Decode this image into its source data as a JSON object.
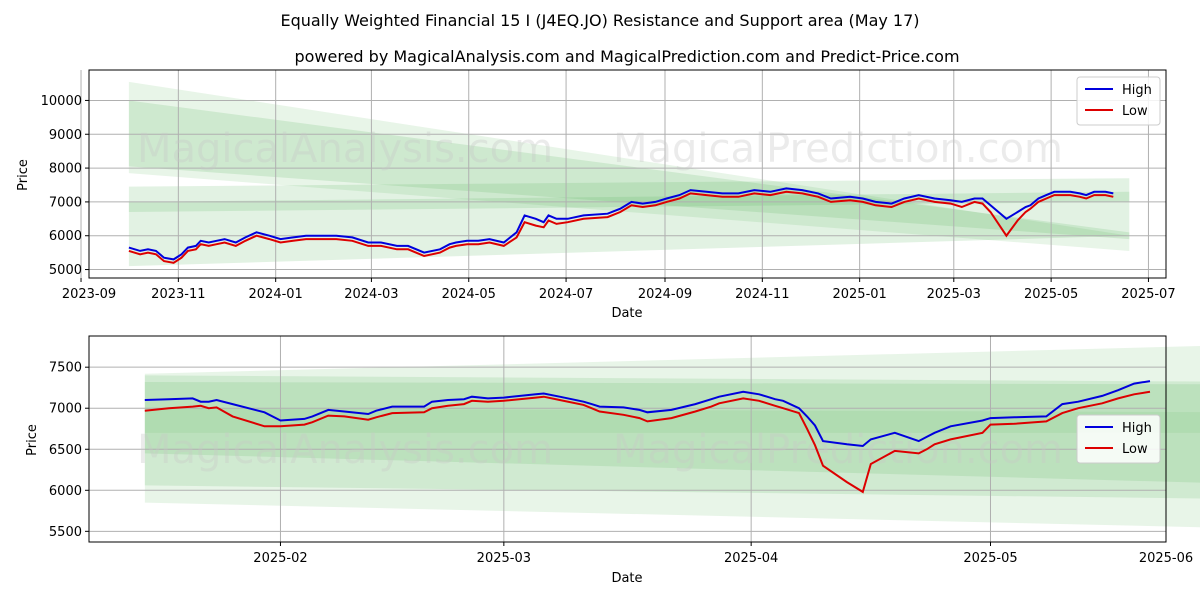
{
  "chart_data": {
    "title": "Equally Weighted Financial 15 I (J4EQ.JO) Resistance and Support area (May 17)",
    "subtitle": "powered by MagicalAnalysis.com and MagicalPrediction.com and Predict-Price.com",
    "watermarks": [
      "MagicalAnalysis.com",
      "MagicalPrediction.com"
    ],
    "colors": {
      "high": "#0000dd",
      "low": "#dd0000",
      "band": "#4caf50",
      "grid": "#b0b0b0"
    },
    "legend": {
      "placement": "top-right",
      "high_label": "High",
      "low_label": "Low"
    },
    "top": {
      "type": "line",
      "xlabel": "Date",
      "ylabel": "Price",
      "xlim": [
        -25,
        650
      ],
      "ylim": [
        4750,
        10900
      ],
      "xticks": [
        {
          "label": "2023-09",
          "x": -30
        },
        {
          "label": "2023-11",
          "x": 31
        },
        {
          "label": "2024-01",
          "x": 92
        },
        {
          "label": "2024-03",
          "x": 152
        },
        {
          "label": "2024-05",
          "x": 213
        },
        {
          "label": "2024-07",
          "x": 274
        },
        {
          "label": "2024-09",
          "x": 336
        },
        {
          "label": "2024-11",
          "x": 397
        },
        {
          "label": "2025-01",
          "x": 458
        },
        {
          "label": "2025-03",
          "x": 517
        },
        {
          "label": "2025-05",
          "x": 578
        },
        {
          "label": "2025-07",
          "x": 639
        }
      ],
      "yticks": [
        5000,
        6000,
        7000,
        8000,
        9000,
        10000
      ],
      "bands": [
        {
          "x": [
            0,
            627
          ],
          "top": [
            10550,
            6000
          ],
          "bottom": [
            7850,
            5550
          ],
          "opacity": 0.13
        },
        {
          "x": [
            0,
            627
          ],
          "top": [
            10000,
            6100
          ],
          "bottom": [
            8050,
            5900
          ],
          "opacity": 0.16
        },
        {
          "x": [
            0,
            627
          ],
          "top": [
            7450,
            7700
          ],
          "bottom": [
            6700,
            7000
          ],
          "opacity": 0.16
        },
        {
          "x": [
            0,
            627
          ],
          "top": [
            7000,
            7300
          ],
          "bottom": [
            5100,
            6000
          ],
          "opacity": 0.16
        }
      ],
      "series": [
        {
          "name": "High",
          "x": [
            0,
            7,
            12,
            17,
            22,
            28,
            33,
            37,
            42,
            45,
            50,
            55,
            60,
            67,
            73,
            80,
            88,
            95,
            103,
            111,
            120,
            130,
            140,
            150,
            158,
            168,
            175,
            185,
            195,
            201,
            205,
            212,
            219,
            226,
            235,
            243,
            248,
            255,
            260,
            263,
            268,
            275,
            285,
            300,
            308,
            315,
            322,
            330,
            337,
            345,
            352,
            362,
            372,
            382,
            392,
            402,
            412,
            422,
            432,
            440,
            452,
            460,
            468,
            478,
            486,
            495,
            505,
            515,
            522,
            530,
            535,
            540,
            550,
            557,
            562,
            565,
            570,
            575,
            580,
            590,
            596,
            600,
            605,
            612,
            617
          ],
          "values": [
            5650,
            5550,
            5600,
            5550,
            5350,
            5300,
            5450,
            5650,
            5700,
            5850,
            5800,
            5850,
            5900,
            5800,
            5950,
            6100,
            6000,
            5900,
            5950,
            6000,
            6000,
            6000,
            5950,
            5800,
            5800,
            5700,
            5700,
            5500,
            5600,
            5750,
            5800,
            5850,
            5850,
            5900,
            5800,
            6100,
            6600,
            6500,
            6400,
            6600,
            6500,
            6500,
            6600,
            6650,
            6800,
            7000,
            6950,
            7000,
            7100,
            7200,
            7350,
            7300,
            7250,
            7250,
            7350,
            7300,
            7400,
            7350,
            7250,
            7100,
            7150,
            7100,
            7000,
            6950,
            7100,
            7200,
            7100,
            7050,
            7000,
            7100,
            7100,
            6900,
            6500,
            6700,
            6850,
            6900,
            7100,
            7200,
            7300,
            7300,
            7250,
            7200,
            7300,
            7300,
            7250
          ]
        },
        {
          "name": "Low",
          "x": [
            0,
            7,
            12,
            17,
            22,
            28,
            33,
            37,
            42,
            45,
            50,
            55,
            60,
            67,
            73,
            80,
            88,
            95,
            103,
            111,
            120,
            130,
            140,
            150,
            158,
            168,
            175,
            185,
            195,
            201,
            205,
            212,
            219,
            226,
            235,
            243,
            248,
            255,
            260,
            263,
            268,
            275,
            285,
            300,
            308,
            315,
            322,
            330,
            337,
            345,
            352,
            362,
            372,
            382,
            392,
            402,
            412,
            422,
            432,
            440,
            452,
            460,
            468,
            478,
            486,
            495,
            505,
            515,
            522,
            530,
            535,
            540,
            550,
            557,
            562,
            565,
            570,
            575,
            580,
            590,
            596,
            600,
            605,
            612,
            617
          ],
          "values": [
            5550,
            5450,
            5500,
            5450,
            5250,
            5200,
            5350,
            5550,
            5600,
            5750,
            5700,
            5750,
            5800,
            5700,
            5850,
            6000,
            5900,
            5800,
            5850,
            5900,
            5900,
            5900,
            5850,
            5700,
            5700,
            5600,
            5600,
            5400,
            5500,
            5650,
            5700,
            5750,
            5750,
            5800,
            5700,
            5950,
            6400,
            6300,
            6250,
            6450,
            6350,
            6400,
            6500,
            6550,
            6700,
            6900,
            6850,
            6900,
            7000,
            7100,
            7250,
            7200,
            7150,
            7150,
            7250,
            7200,
            7300,
            7250,
            7150,
            7000,
            7050,
            7000,
            6900,
            6850,
            7000,
            7100,
            7000,
            6950,
            6850,
            7000,
            6950,
            6700,
            6000,
            6450,
            6700,
            6800,
            7000,
            7100,
            7200,
            7200,
            7150,
            7100,
            7200,
            7200,
            7150
          ]
        }
      ]
    },
    "bottom": {
      "type": "line",
      "xlabel": "Date",
      "ylabel": "Price",
      "xlim": [
        -7,
        128
      ],
      "ylim": [
        5370,
        7880
      ],
      "xticks": [
        {
          "label": "2025-02",
          "x": 17
        },
        {
          "label": "2025-03",
          "x": 45
        },
        {
          "label": "2025-04",
          "x": 76
        },
        {
          "label": "2025-05",
          "x": 106
        },
        {
          "label": "2025-06",
          "x": 137
        }
      ],
      "yticks": [
        5500,
        6000,
        6500,
        7000,
        7500
      ],
      "bands": [
        {
          "x": [
            0,
            141
          ],
          "top": [
            7420,
            7780
          ],
          "bottom": [
            5850,
            5530
          ],
          "opacity": 0.13
        },
        {
          "x": [
            0,
            141
          ],
          "top": [
            7320,
            7290
          ],
          "bottom": [
            6060,
            5890
          ],
          "opacity": 0.15
        },
        {
          "x": [
            0,
            141
          ],
          "top": [
            7400,
            7320
          ],
          "bottom": [
            6450,
            6070
          ],
          "opacity": 0.15
        },
        {
          "x": [
            0,
            141
          ],
          "top": [
            7000,
            6950
          ],
          "bottom": [
            6700,
            6700
          ],
          "opacity": 0.1
        }
      ],
      "series": [
        {
          "name": "High",
          "x": [
            0,
            3,
            6,
            7,
            8,
            9,
            11,
            15,
            17,
            20,
            21,
            23,
            25,
            28,
            29,
            31,
            35,
            36,
            38,
            40,
            41,
            43,
            45,
            49,
            50,
            52,
            55,
            56,
            57,
            60,
            62,
            63,
            66,
            69,
            71,
            72,
            75,
            77,
            78,
            79,
            80,
            82,
            83,
            84,
            85,
            88,
            90,
            91,
            94,
            97,
            98,
            99,
            101,
            105,
            106,
            109,
            113,
            115,
            117,
            120,
            122,
            124,
            126
          ],
          "values": [
            7100,
            7110,
            7120,
            7080,
            7080,
            7100,
            7050,
            6950,
            6850,
            6870,
            6900,
            6980,
            6960,
            6930,
            6970,
            7020,
            7020,
            7080,
            7100,
            7110,
            7140,
            7120,
            7130,
            7170,
            7180,
            7140,
            7080,
            7050,
            7020,
            7010,
            6980,
            6950,
            6980,
            7050,
            7110,
            7140,
            7200,
            7170,
            7140,
            7110,
            7090,
            7000,
            6900,
            6790,
            6600,
            6560,
            6540,
            6620,
            6700,
            6600,
            6650,
            6700,
            6780,
            6850,
            6880,
            6890,
            6900,
            7050,
            7080,
            7150,
            7220,
            7300,
            7330
          ]
        },
        {
          "name": "Low",
          "x": [
            0,
            3,
            6,
            7,
            8,
            9,
            11,
            15,
            17,
            20,
            21,
            23,
            25,
            28,
            29,
            31,
            35,
            36,
            38,
            40,
            41,
            43,
            45,
            49,
            50,
            52,
            55,
            56,
            57,
            60,
            62,
            63,
            66,
            69,
            71,
            72,
            75,
            77,
            78,
            79,
            80,
            82,
            83,
            84,
            85,
            88,
            90,
            91,
            94,
            97,
            98,
            99,
            101,
            105,
            106,
            109,
            113,
            115,
            117,
            120,
            122,
            124,
            126
          ],
          "values": [
            6970,
            7000,
            7020,
            7030,
            7000,
            7010,
            6900,
            6780,
            6780,
            6800,
            6830,
            6910,
            6900,
            6860,
            6890,
            6940,
            6950,
            7000,
            7030,
            7050,
            7090,
            7080,
            7090,
            7130,
            7140,
            7100,
            7040,
            7000,
            6960,
            6920,
            6880,
            6840,
            6880,
            6960,
            7020,
            7060,
            7120,
            7090,
            7060,
            7030,
            7000,
            6940,
            6750,
            6550,
            6300,
            6100,
            5980,
            6320,
            6480,
            6450,
            6500,
            6560,
            6620,
            6700,
            6800,
            6810,
            6840,
            6940,
            7000,
            7060,
            7120,
            7170,
            7200
          ]
        }
      ]
    }
  }
}
